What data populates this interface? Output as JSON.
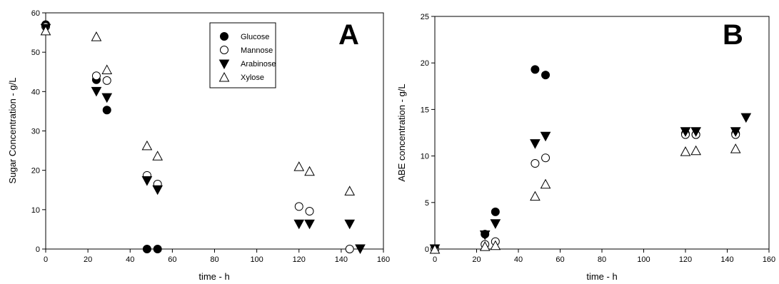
{
  "chart_data": [
    {
      "type": "scatter",
      "panel_label": "A",
      "title": "",
      "xlabel": "time - h",
      "ylabel": "Sugar Concentration - g/L",
      "xlim": [
        0,
        160
      ],
      "ylim": [
        0,
        60
      ],
      "xticks": [
        0,
        20,
        40,
        60,
        80,
        100,
        120,
        140,
        160
      ],
      "yticks": [
        0,
        10,
        20,
        30,
        40,
        50,
        60
      ],
      "grid": false,
      "legend": "top-center",
      "series": [
        {
          "name": "Glucose",
          "marker": "circle-filled",
          "x": [
            0,
            24,
            29,
            48,
            53
          ],
          "y": [
            57,
            43,
            35.3,
            0,
            0
          ]
        },
        {
          "name": "Mannose",
          "marker": "circle-open",
          "x": [
            0,
            24,
            29,
            48,
            53,
            120,
            125,
            144
          ],
          "y": [
            56.5,
            44,
            42.8,
            18.7,
            16.5,
            10.8,
            9.6,
            0
          ]
        },
        {
          "name": "Arabinose",
          "marker": "triangle-down-filled",
          "x": [
            0,
            24,
            29,
            48,
            53,
            120,
            125,
            144,
            149
          ],
          "y": [
            56,
            40,
            38.4,
            17.3,
            15,
            6.3,
            6.3,
            6.3,
            0
          ]
        },
        {
          "name": "Xylose",
          "marker": "triangle-up-open",
          "x": [
            0,
            24,
            29,
            48,
            53,
            120,
            125,
            144
          ],
          "y": [
            55.5,
            54,
            45.6,
            26.3,
            23.7,
            21,
            19.8,
            14.8
          ]
        }
      ]
    },
    {
      "type": "scatter",
      "panel_label": "B",
      "title": "",
      "xlabel": "time - h",
      "ylabel": "ABE concentration - g/L",
      "xlim": [
        0,
        160
      ],
      "ylim": [
        0,
        25
      ],
      "xticks": [
        0,
        20,
        40,
        60,
        80,
        100,
        120,
        140,
        160
      ],
      "yticks": [
        0,
        5,
        10,
        15,
        20,
        25
      ],
      "grid": false,
      "series": [
        {
          "marker": "circle-filled",
          "x": [
            0,
            24,
            29,
            48,
            53,
            120,
            125,
            144
          ],
          "y": [
            0,
            1.6,
            4,
            19.3,
            18.7,
            12.4,
            12.3,
            12.4
          ]
        },
        {
          "marker": "circle-open",
          "x": [
            0,
            24,
            29,
            48,
            53,
            120,
            125,
            144
          ],
          "y": [
            0,
            0.5,
            0.8,
            9.2,
            9.8,
            12.3,
            12.3,
            12.3
          ]
        },
        {
          "marker": "triangle-down-filled",
          "x": [
            0,
            24,
            29,
            48,
            53,
            120,
            125,
            144,
            149
          ],
          "y": [
            0,
            1.5,
            2.7,
            11.3,
            12.1,
            12.6,
            12.6,
            12.6,
            14.1
          ]
        },
        {
          "marker": "triangle-up-open",
          "x": [
            0,
            24,
            29,
            48,
            53,
            120,
            125,
            144
          ],
          "y": [
            0,
            0.3,
            0.4,
            5.7,
            7,
            10.5,
            10.6,
            10.8
          ]
        }
      ]
    }
  ]
}
